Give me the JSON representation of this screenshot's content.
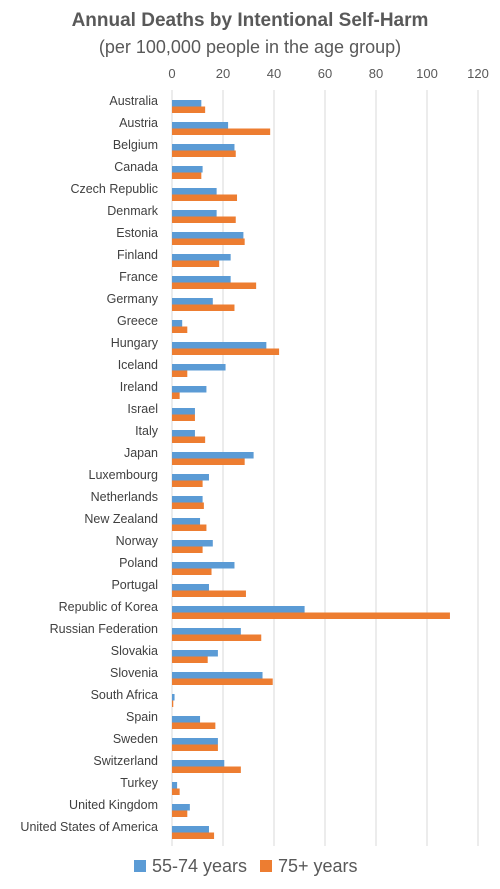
{
  "chart_data": {
    "type": "bar",
    "orientation": "horizontal",
    "title": "Annual Deaths by Intentional Self-Harm",
    "subtitle": "(per 100,000 people in the age group)",
    "xlim": [
      0,
      120
    ],
    "xticks": [
      0,
      20,
      40,
      60,
      80,
      100,
      120
    ],
    "grid": true,
    "legend_position": "bottom",
    "categories": [
      "Australia",
      "Austria",
      "Belgium",
      "Canada",
      "Czech Republic",
      "Denmark",
      "Estonia",
      "Finland",
      "France",
      "Germany",
      "Greece",
      "Hungary",
      "Iceland",
      "Ireland",
      "Israel",
      "Italy",
      "Japan",
      "Luxembourg",
      "Netherlands",
      "New Zealand",
      "Norway",
      "Poland",
      "Portugal",
      "Republic of Korea",
      "Russian Federation",
      "Slovakia",
      "Slovenia",
      "South Africa",
      "Spain",
      "Sweden",
      "Switzerland",
      "Turkey",
      "United Kingdom",
      "United States of America"
    ],
    "series": [
      {
        "name": "55-74 years",
        "color": "#5b9bd5",
        "values": [
          11.5,
          22,
          24.5,
          12,
          17.5,
          17.5,
          28,
          23,
          23,
          16,
          4,
          37,
          21,
          13.5,
          9,
          9,
          32,
          14.5,
          12,
          11,
          16,
          24.5,
          14.5,
          52,
          27,
          18,
          35.5,
          1,
          11,
          18,
          20.5,
          2,
          7,
          14.5
        ]
      },
      {
        "name": "75+ years",
        "color": "#ed7d31",
        "values": [
          13,
          38.5,
          25,
          11.5,
          25.5,
          25,
          28.5,
          18.5,
          33,
          24.5,
          6,
          42,
          6,
          3,
          9,
          13,
          28.5,
          12,
          12.5,
          13.5,
          12,
          15.5,
          29,
          109,
          35,
          14,
          39.5,
          0.5,
          17,
          18,
          27,
          3,
          6,
          16.5
        ]
      }
    ]
  }
}
